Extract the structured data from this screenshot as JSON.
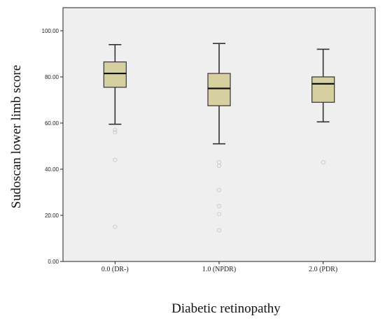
{
  "chart_data": {
    "type": "boxplot",
    "xlabel": "Diabetic retinopathy",
    "ylabel": "Sudoscan lower limb score",
    "ylim": [
      0,
      110
    ],
    "yticks": [
      "0.00",
      "20.00",
      "40.00",
      "60.00",
      "80.00",
      "100.00"
    ],
    "ytick_values": [
      0,
      20,
      40,
      60,
      80,
      100
    ],
    "categories": [
      "0.0 (DR-)",
      "1.0 (NPDR)",
      "2.0 (PDR)"
    ],
    "boxes": [
      {
        "whisker_low": 59.5,
        "q1": 75.5,
        "median": 81.5,
        "q3": 86.5,
        "whisker_high": 94.0,
        "outliers": [
          57.0,
          56.0,
          44.0,
          15.0
        ]
      },
      {
        "whisker_low": 51.0,
        "q1": 67.5,
        "median": 75.0,
        "q3": 81.5,
        "whisker_high": 94.5,
        "outliers": [
          43.0,
          41.5,
          31.0,
          24.0,
          20.5,
          13.5
        ]
      },
      {
        "whisker_low": 60.5,
        "q1": 69.0,
        "median": 77.0,
        "q3": 80.0,
        "whisker_high": 92.0,
        "outliers": [
          43.0
        ]
      }
    ],
    "grid": false,
    "colors": {
      "plot_bg": "#efefef",
      "box_fill": "#d6cf9f",
      "box_stroke": "#333333",
      "outlier": "#cccccc"
    }
  }
}
